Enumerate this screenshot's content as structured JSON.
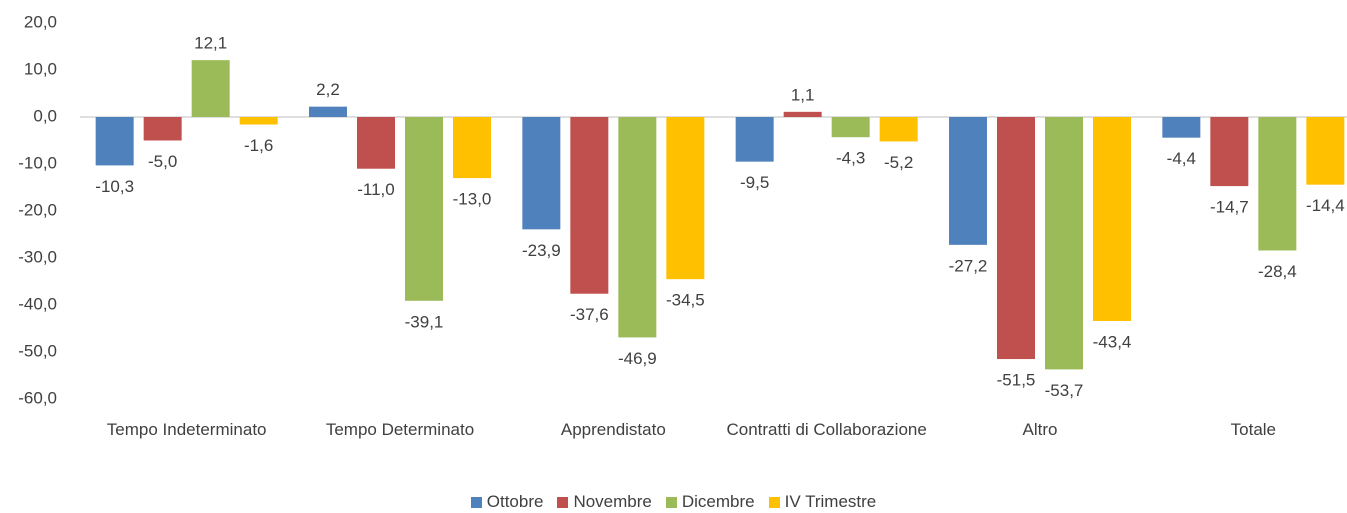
{
  "chart_data": {
    "type": "bar",
    "categories": [
      "Tempo Indeterminato",
      "Tempo Determinato",
      "Apprendistato",
      "Contratti di Collaborazione",
      "Altro",
      "Totale"
    ],
    "series": [
      {
        "name": "Ottobre",
        "color": "#4f81bd",
        "values": [
          -10.3,
          2.2,
          -23.9,
          -9.5,
          -27.2,
          -4.4
        ],
        "value_labels": [
          "-10,3",
          "2,2",
          "-23,9",
          "-9,5",
          "-27,2",
          "-4,4"
        ]
      },
      {
        "name": "Novembre",
        "color": "#c0504d",
        "values": [
          -5.0,
          -11.0,
          -37.6,
          1.1,
          -51.5,
          -14.7
        ],
        "value_labels": [
          "-5,0",
          "-11,0",
          "-37,6",
          "1,1",
          "-51,5",
          "-14,7"
        ]
      },
      {
        "name": "Dicembre",
        "color": "#9bbb59",
        "values": [
          12.1,
          -39.1,
          -46.9,
          -4.3,
          -53.7,
          -28.4
        ],
        "value_labels": [
          "12,1",
          "-39,1",
          "-46,9",
          "-4,3",
          "-53,7",
          "-28,4"
        ]
      },
      {
        "name": "IV Trimestre",
        "color": "#ffc000",
        "values": [
          -1.6,
          -13.0,
          -34.5,
          -5.2,
          -43.4,
          -14.4
        ],
        "value_labels": [
          "-1,6",
          "-13,0",
          "-34,5",
          "-5,2",
          "-43,4",
          "-14,4"
        ]
      }
    ],
    "ylim": [
      -60,
      20
    ],
    "yticks": [
      {
        "value": 20,
        "label": "20,0"
      },
      {
        "value": 10,
        "label": "10,0"
      },
      {
        "value": 0,
        "label": "0,0"
      },
      {
        "value": -10,
        "label": "-10,0"
      },
      {
        "value": -20,
        "label": "-20,0"
      },
      {
        "value": -30,
        "label": "-30,0"
      },
      {
        "value": -40,
        "label": "-40,0"
      },
      {
        "value": -50,
        "label": "-50,0"
      },
      {
        "value": -60,
        "label": "-60,0"
      }
    ],
    "grid": false,
    "legend": "bottom"
  }
}
